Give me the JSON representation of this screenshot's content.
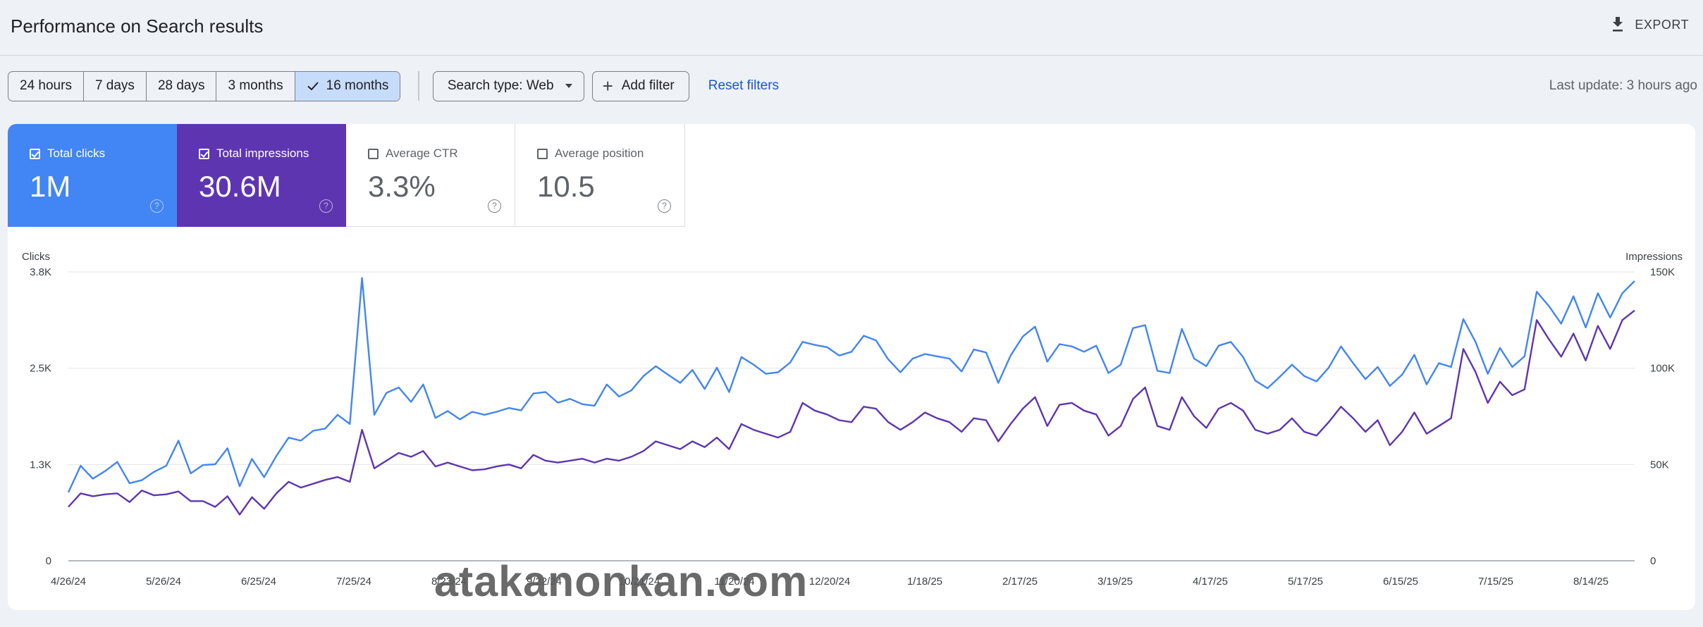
{
  "header": {
    "title": "Performance on Search results",
    "export_label": "EXPORT"
  },
  "toolbar": {
    "date_ranges": [
      "24 hours",
      "7 days",
      "28 days",
      "3 months",
      "16 months"
    ],
    "active_range": "16 months",
    "search_type_label": "Search type: Web",
    "add_filter_label": "Add filter",
    "reset_label": "Reset filters",
    "last_update": "Last update: 3 hours ago"
  },
  "metrics": [
    {
      "label": "Total clicks",
      "value": "1M",
      "checked": true,
      "color": "#4285f4"
    },
    {
      "label": "Total impressions",
      "value": "30.6M",
      "checked": true,
      "color": "#5e35b1"
    },
    {
      "label": "Average CTR",
      "value": "3.3%",
      "checked": false
    },
    {
      "label": "Average position",
      "value": "10.5",
      "checked": false
    }
  ],
  "watermark": "atakanonkan.com",
  "chart_data": {
    "type": "line",
    "left_axis_label": "Clicks",
    "right_axis_label": "Impressions",
    "left_ticks": [
      "0",
      "1.3K",
      "2.5K",
      "3.8K"
    ],
    "right_ticks": [
      "0",
      "50K",
      "100K",
      "150K"
    ],
    "ylim_left": [
      0,
      3800
    ],
    "ylim_right": [
      0,
      150000
    ],
    "x_labels": [
      "4/26/24",
      "5/26/24",
      "6/25/24",
      "7/25/24",
      "8/23/24",
      "9/22/24",
      "10/21/24",
      "11/20/24",
      "12/20/24",
      "1/18/25",
      "2/17/25",
      "3/19/25",
      "4/17/25",
      "5/17/25",
      "6/15/25",
      "7/15/25",
      "8/14/25"
    ],
    "grid": true,
    "series": [
      {
        "name": "Clicks",
        "axis": "left",
        "color": "#4285f4",
        "values": [
          900,
          1250,
          1080,
          1180,
          1300,
          1020,
          1060,
          1170,
          1250,
          1580,
          1150,
          1260,
          1270,
          1480,
          980,
          1340,
          1100,
          1380,
          1620,
          1580,
          1710,
          1740,
          1920,
          1800,
          3720,
          1920,
          2210,
          2280,
          2090,
          2320,
          1880,
          1970,
          1860,
          1960,
          1920,
          1960,
          2010,
          1980,
          2200,
          2220,
          2080,
          2130,
          2060,
          2040,
          2320,
          2160,
          2240,
          2430,
          2560,
          2450,
          2340,
          2510,
          2260,
          2540,
          2220,
          2680,
          2580,
          2460,
          2480,
          2610,
          2880,
          2840,
          2810,
          2700,
          2750,
          2960,
          2900,
          2650,
          2480,
          2660,
          2720,
          2690,
          2660,
          2490,
          2780,
          2740,
          2340,
          2700,
          2950,
          3080,
          2620,
          2850,
          2820,
          2750,
          2830,
          2470,
          2580,
          3060,
          3100,
          2500,
          2470,
          3050,
          2660,
          2560,
          2830,
          2880,
          2680,
          2370,
          2270,
          2420,
          2580,
          2430,
          2360,
          2540,
          2820,
          2600,
          2390,
          2550,
          2300,
          2450,
          2710,
          2320,
          2600,
          2550,
          3180,
          2880,
          2460,
          2800,
          2550,
          2690,
          3540,
          3350,
          3120,
          3480,
          3070,
          3520,
          3200,
          3520,
          3680
        ]
      },
      {
        "name": "Impressions",
        "axis": "right",
        "color": "#5e35b1",
        "values": [
          28000,
          35000,
          33500,
          34500,
          35000,
          30500,
          36500,
          34000,
          34500,
          36000,
          31000,
          31000,
          28000,
          33500,
          24000,
          33000,
          27000,
          35000,
          41000,
          38000,
          40000,
          42000,
          43500,
          41000,
          68000,
          48000,
          52000,
          56000,
          54000,
          57000,
          49000,
          51000,
          49000,
          47000,
          47500,
          49000,
          50000,
          48000,
          55000,
          52000,
          51000,
          52000,
          53000,
          51000,
          53000,
          52000,
          54000,
          57000,
          62000,
          60000,
          58000,
          62000,
          59000,
          64000,
          58000,
          71000,
          68000,
          66000,
          64000,
          67000,
          82000,
          78000,
          76000,
          73000,
          72000,
          80000,
          79000,
          72000,
          68000,
          72000,
          77000,
          74000,
          72000,
          67000,
          74000,
          73000,
          62000,
          71000,
          79000,
          85000,
          70000,
          81000,
          82000,
          78000,
          76000,
          65000,
          70000,
          84000,
          90000,
          70000,
          68000,
          85000,
          75000,
          69000,
          79000,
          82000,
          78000,
          68000,
          66000,
          68000,
          74000,
          67000,
          65000,
          72000,
          80000,
          74000,
          67000,
          73000,
          60000,
          67000,
          77000,
          66000,
          70000,
          74000,
          110000,
          98000,
          82000,
          93000,
          86000,
          89000,
          125000,
          115000,
          106000,
          118000,
          104000,
          122000,
          110000,
          125000,
          130000
        ]
      }
    ]
  }
}
